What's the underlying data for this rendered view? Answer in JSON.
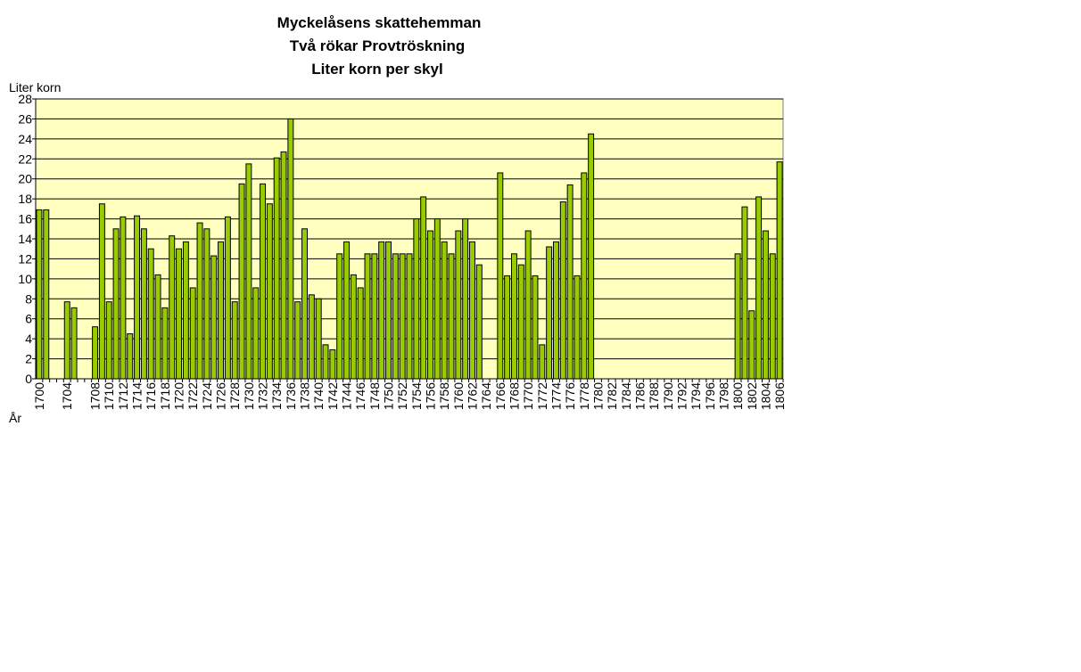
{
  "chart_data": {
    "type": "bar",
    "title": [
      "Myckelåsens skattehemman",
      "Två rökar  Provtröskning",
      "Liter korn per skyl"
    ],
    "y_label": "Liter korn",
    "x_label": "År",
    "categories": [
      "1700",
      null,
      null,
      null,
      "1704",
      null,
      null,
      null,
      "1708",
      null,
      "1710",
      null,
      "1712",
      null,
      "1714",
      null,
      "1716",
      null,
      "1718",
      null,
      "1720",
      null,
      "1722",
      null,
      "1724",
      null,
      "1726",
      null,
      "1728",
      null,
      "1730",
      null,
      "1732",
      null,
      "1734",
      null,
      "1736",
      null,
      "1738",
      null,
      "1740",
      null,
      "1742",
      null,
      "1744",
      null,
      "1746",
      null,
      "1748",
      null,
      "1750",
      null,
      "1752",
      null,
      "1754",
      null,
      "1756",
      null,
      "1758",
      null,
      "1760",
      null,
      "1762",
      null,
      "1764",
      null,
      "1766",
      null,
      "1768",
      null,
      "1770",
      null,
      "1772",
      null,
      "1774",
      null,
      "1776",
      null,
      "1778",
      null,
      "1780",
      null,
      "1782",
      null,
      "1784",
      null,
      "1786",
      null,
      "1788",
      null,
      "1790",
      null,
      "1792",
      null,
      "1794",
      null,
      "1796",
      null,
      "1798",
      null,
      "1800",
      null,
      "1802",
      null,
      "1804",
      null,
      "1806"
    ],
    "values": [
      16.9,
      16.9,
      null,
      null,
      7.7,
      7.1,
      null,
      null,
      5.2,
      17.5,
      7.7,
      15,
      16.2,
      4.5,
      16.3,
      15,
      13,
      10.4,
      7.1,
      14.3,
      13,
      13.7,
      9.1,
      15.6,
      15,
      12.3,
      13.7,
      16.2,
      7.7,
      19.5,
      21.5,
      9.1,
      19.5,
      17.5,
      22.1,
      22.7,
      26,
      7.7,
      15,
      8.4,
      8,
      3.4,
      2.9,
      12.5,
      13.7,
      10.4,
      9.1,
      12.5,
      12.5,
      13.7,
      13.7,
      12.5,
      12.5,
      12.5,
      16,
      18.2,
      14.8,
      16,
      13.7,
      12.5,
      14.8,
      16,
      13.7,
      11.4,
      null,
      null,
      20.6,
      10.3,
      12.5,
      11.4,
      14.8,
      10.3,
      3.4,
      13.2,
      13.7,
      17.7,
      19.4,
      10.3,
      20.6,
      24.5,
      null,
      null,
      null,
      null,
      null,
      null,
      null,
      null,
      null,
      null,
      null,
      null,
      null,
      null,
      null,
      null,
      null,
      null,
      null,
      null,
      12.5,
      17.2,
      6.8,
      18.2,
      14.8,
      12.5,
      21.7
    ],
    "color": "#99cc00",
    "background": "#ffffc0",
    "ylim": [
      0,
      28
    ],
    "yticks": [
      0,
      2,
      4,
      6,
      8,
      10,
      12,
      14,
      16,
      18,
      20,
      22,
      24,
      26,
      28
    ],
    "grid": true
  }
}
